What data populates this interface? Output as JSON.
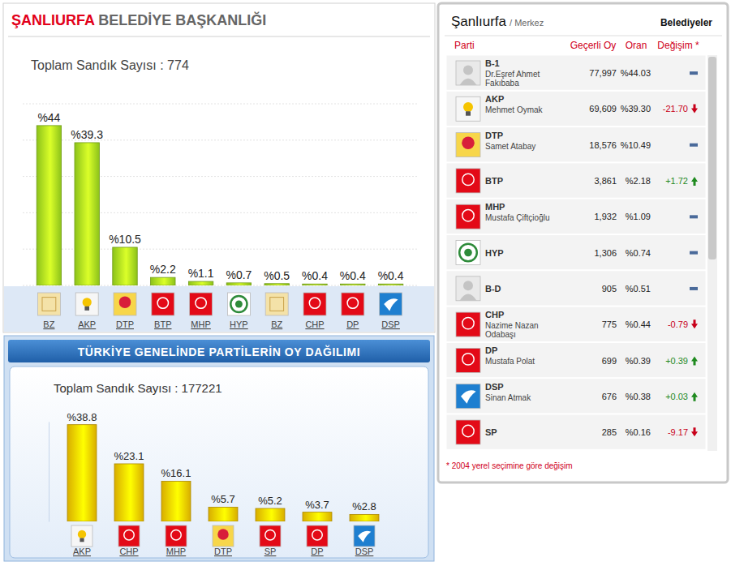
{
  "chart_data": [
    {
      "type": "bar",
      "title": "ŞANLIURFA BELEDİYE BAŞKANLIĞI",
      "subtitle": "Toplam Sandık Sayısı : 774",
      "categories": [
        "BZ",
        "AKP",
        "DTP",
        "BTP",
        "MHP",
        "HYP",
        "BZ",
        "CHP",
        "DP",
        "DSP"
      ],
      "values": [
        44,
        39.3,
        10.5,
        2.2,
        1.1,
        0.7,
        0.5,
        0.4,
        0.4,
        0.4
      ],
      "value_labels": [
        "%44",
        "%39.3",
        "%10.5",
        "%2.2",
        "%1.1",
        "%0.7",
        "%0.5",
        "%0.4",
        "%0.4",
        "%0.4"
      ],
      "color": "#9fdc1e",
      "ylim": [
        0,
        50
      ],
      "yticks": [
        0,
        10,
        20,
        30,
        40,
        50
      ],
      "grid": true,
      "data_labels": true,
      "tick_labels": "x"
    },
    {
      "type": "bar",
      "title": "TÜRKİYE GENELİNDE PARTİLERİN OY DAĞILIMI",
      "subtitle": "Toplam Sandık Sayısı : 177221",
      "categories": [
        "AKP",
        "CHP",
        "MHP",
        "DTP",
        "SP",
        "DP",
        "DSP"
      ],
      "values": [
        38.8,
        23.1,
        16.1,
        5.7,
        5.2,
        3.7,
        2.8
      ],
      "value_labels": [
        "%38.8",
        "%23.1",
        "%16.1",
        "%5.7",
        "%5.2",
        "%3.7",
        "%2.8"
      ],
      "color": "#f5c400",
      "ylim": [
        0,
        40
      ],
      "grid": false,
      "data_labels": true,
      "tick_labels": "x"
    }
  ],
  "table": {
    "header": {
      "title": "Şanlıurfa",
      "subtitle": "/ Merkez",
      "link": "Belediyeler"
    },
    "columns": [
      "Parti",
      "Geçerli Oy",
      "Oran",
      "Değişim *"
    ],
    "rows": [
      {
        "party": "B-1",
        "candidate": "Dr.Eşref Ahmet Fakıbaba",
        "votes": "77,997",
        "share": "%44.03"
      },
      {
        "party": "AKP",
        "candidate": "Mehmet Oymak",
        "votes": "69,609",
        "share": "%39.30",
        "change": "-21.70"
      },
      {
        "party": "DTP",
        "candidate": "Samet Atabay",
        "votes": "18,576",
        "share": "%10.49"
      },
      {
        "party": "BTP",
        "votes": "3,861",
        "share": "%2.18",
        "change": "+1.72"
      },
      {
        "party": "MHP",
        "candidate": "Mustafa Çiftçioğlu",
        "votes": "1,932",
        "share": "%1.09"
      },
      {
        "party": "HYP",
        "votes": "1,306",
        "share": "%0.74"
      },
      {
        "party": "B-D",
        "votes": "905",
        "share": "%0.51"
      },
      {
        "party": "CHP",
        "candidate": "Nazime Nazan Odabaşı",
        "votes": "775",
        "share": "%0.44",
        "change": "-0.79"
      },
      {
        "party": "DP",
        "candidate": "Mustafa Polat",
        "votes": "699",
        "share": "%0.39",
        "change": "+0.39"
      },
      {
        "party": "DSP",
        "candidate": "Sinan Atmak",
        "votes": "676",
        "share": "%0.38",
        "change": "+0.03"
      },
      {
        "party": "SP",
        "votes": "285",
        "share": "%0.16",
        "change": "-9.17"
      }
    ],
    "footnote": "* 2004 yerel seçimine göre değişim"
  }
}
